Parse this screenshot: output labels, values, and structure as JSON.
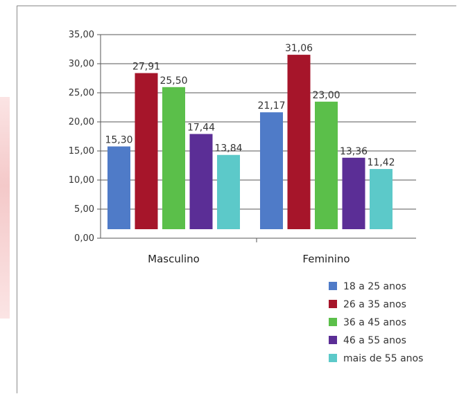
{
  "chart_data": {
    "type": "bar",
    "categories": [
      "Masculino",
      "Feminino"
    ],
    "series": [
      {
        "name": "18 a 25 anos",
        "values": [
          15.3,
          21.17
        ],
        "labels": [
          "15,30",
          "21,17"
        ],
        "color": "#4f7bc8"
      },
      {
        "name": "26 a 35 anos",
        "values": [
          27.91,
          31.06
        ],
        "labels": [
          "27,91",
          "31,06"
        ],
        "color": "#a6152a"
      },
      {
        "name": "36 a 45 anos",
        "values": [
          25.5,
          23.0
        ],
        "labels": [
          "25,50",
          "23,00"
        ],
        "color": "#5bbf4a"
      },
      {
        "name": "46 a 55 anos",
        "values": [
          17.44,
          13.36
        ],
        "labels": [
          "17,44",
          "13,36"
        ],
        "color": "#5b2e96"
      },
      {
        "name": "mais de 55 anos",
        "values": [
          13.84,
          11.42
        ],
        "labels": [
          "13,84",
          "11,42"
        ],
        "color": "#5cc9c9"
      }
    ],
    "yticks": [
      "0,00",
      "5,00",
      "10,00",
      "15,00",
      "20,00",
      "25,00",
      "30,00",
      "35,00"
    ],
    "ylim": [
      0,
      35
    ],
    "grid": true,
    "legend_position": "bottom-right"
  }
}
